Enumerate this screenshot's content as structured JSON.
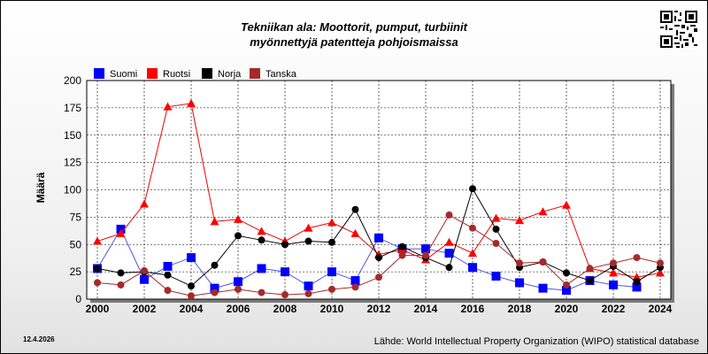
{
  "header": {
    "title_line1": "Tekniikan ala: Moottorit, pumput, turbiinit",
    "title_line2": "myönnettyjä patentteja pohjoismaissa"
  },
  "footer": {
    "date": "12.4.2026",
    "source": "Lähde: World Intellectual Property Organization (WIPO) statistical database"
  },
  "chart_data": {
    "type": "line",
    "title": "Tekniikan ala: Moottorit, pumput, turbiinit myönnettyjä patentteja pohjoismaissa",
    "xlabel": "",
    "ylabel": "Määrä",
    "x": [
      2000,
      2001,
      2002,
      2003,
      2004,
      2005,
      2006,
      2007,
      2008,
      2009,
      2010,
      2011,
      2012,
      2013,
      2014,
      2015,
      2016,
      2017,
      2018,
      2019,
      2020,
      2021,
      2022,
      2023,
      2024
    ],
    "xticks": [
      "2000",
      "2002",
      "2004",
      "2006",
      "2008",
      "2010",
      "2012",
      "2014",
      "2016",
      "2018",
      "2020",
      "2022",
      "2024"
    ],
    "yticks": [
      "0",
      "25",
      "50",
      "75",
      "100",
      "125",
      "150",
      "175",
      "200"
    ],
    "ylim": [
      0,
      200
    ],
    "grid": true,
    "legend_position": "top-left",
    "series": [
      {
        "name": "Suomi",
        "color": "#0000ff",
        "marker": "square",
        "line": "#5555dd",
        "values": [
          28,
          64,
          18,
          30,
          38,
          10,
          16,
          28,
          25,
          12,
          25,
          17,
          56,
          46,
          46,
          42,
          29,
          21,
          15,
          10,
          8,
          17,
          13,
          11,
          null
        ]
      },
      {
        "name": "Ruotsi",
        "color": "#ff0000",
        "marker": "triangle",
        "line": "#ee0000",
        "values": [
          53,
          60,
          87,
          176,
          179,
          71,
          73,
          62,
          53,
          65,
          70,
          60,
          41,
          45,
          36,
          52,
          42,
          74,
          72,
          80,
          86,
          28,
          24,
          20,
          24
        ]
      },
      {
        "name": "Norja",
        "color": "#000000",
        "marker": "circle",
        "line": "#000000",
        "values": [
          28,
          24,
          25,
          22,
          12,
          31,
          58,
          54,
          50,
          53,
          52,
          82,
          38,
          48,
          38,
          29,
          101,
          64,
          29,
          34,
          24,
          17,
          30,
          16,
          29
        ]
      },
      {
        "name": "Tanska",
        "color": "#a52a2a",
        "marker": "circle",
        "line": "#a52a2a",
        "values": [
          15,
          13,
          26,
          8,
          3,
          6,
          9,
          6,
          4,
          5,
          9,
          11,
          20,
          40,
          40,
          77,
          65,
          51,
          33,
          34,
          13,
          28,
          33,
          38,
          33
        ]
      }
    ]
  }
}
